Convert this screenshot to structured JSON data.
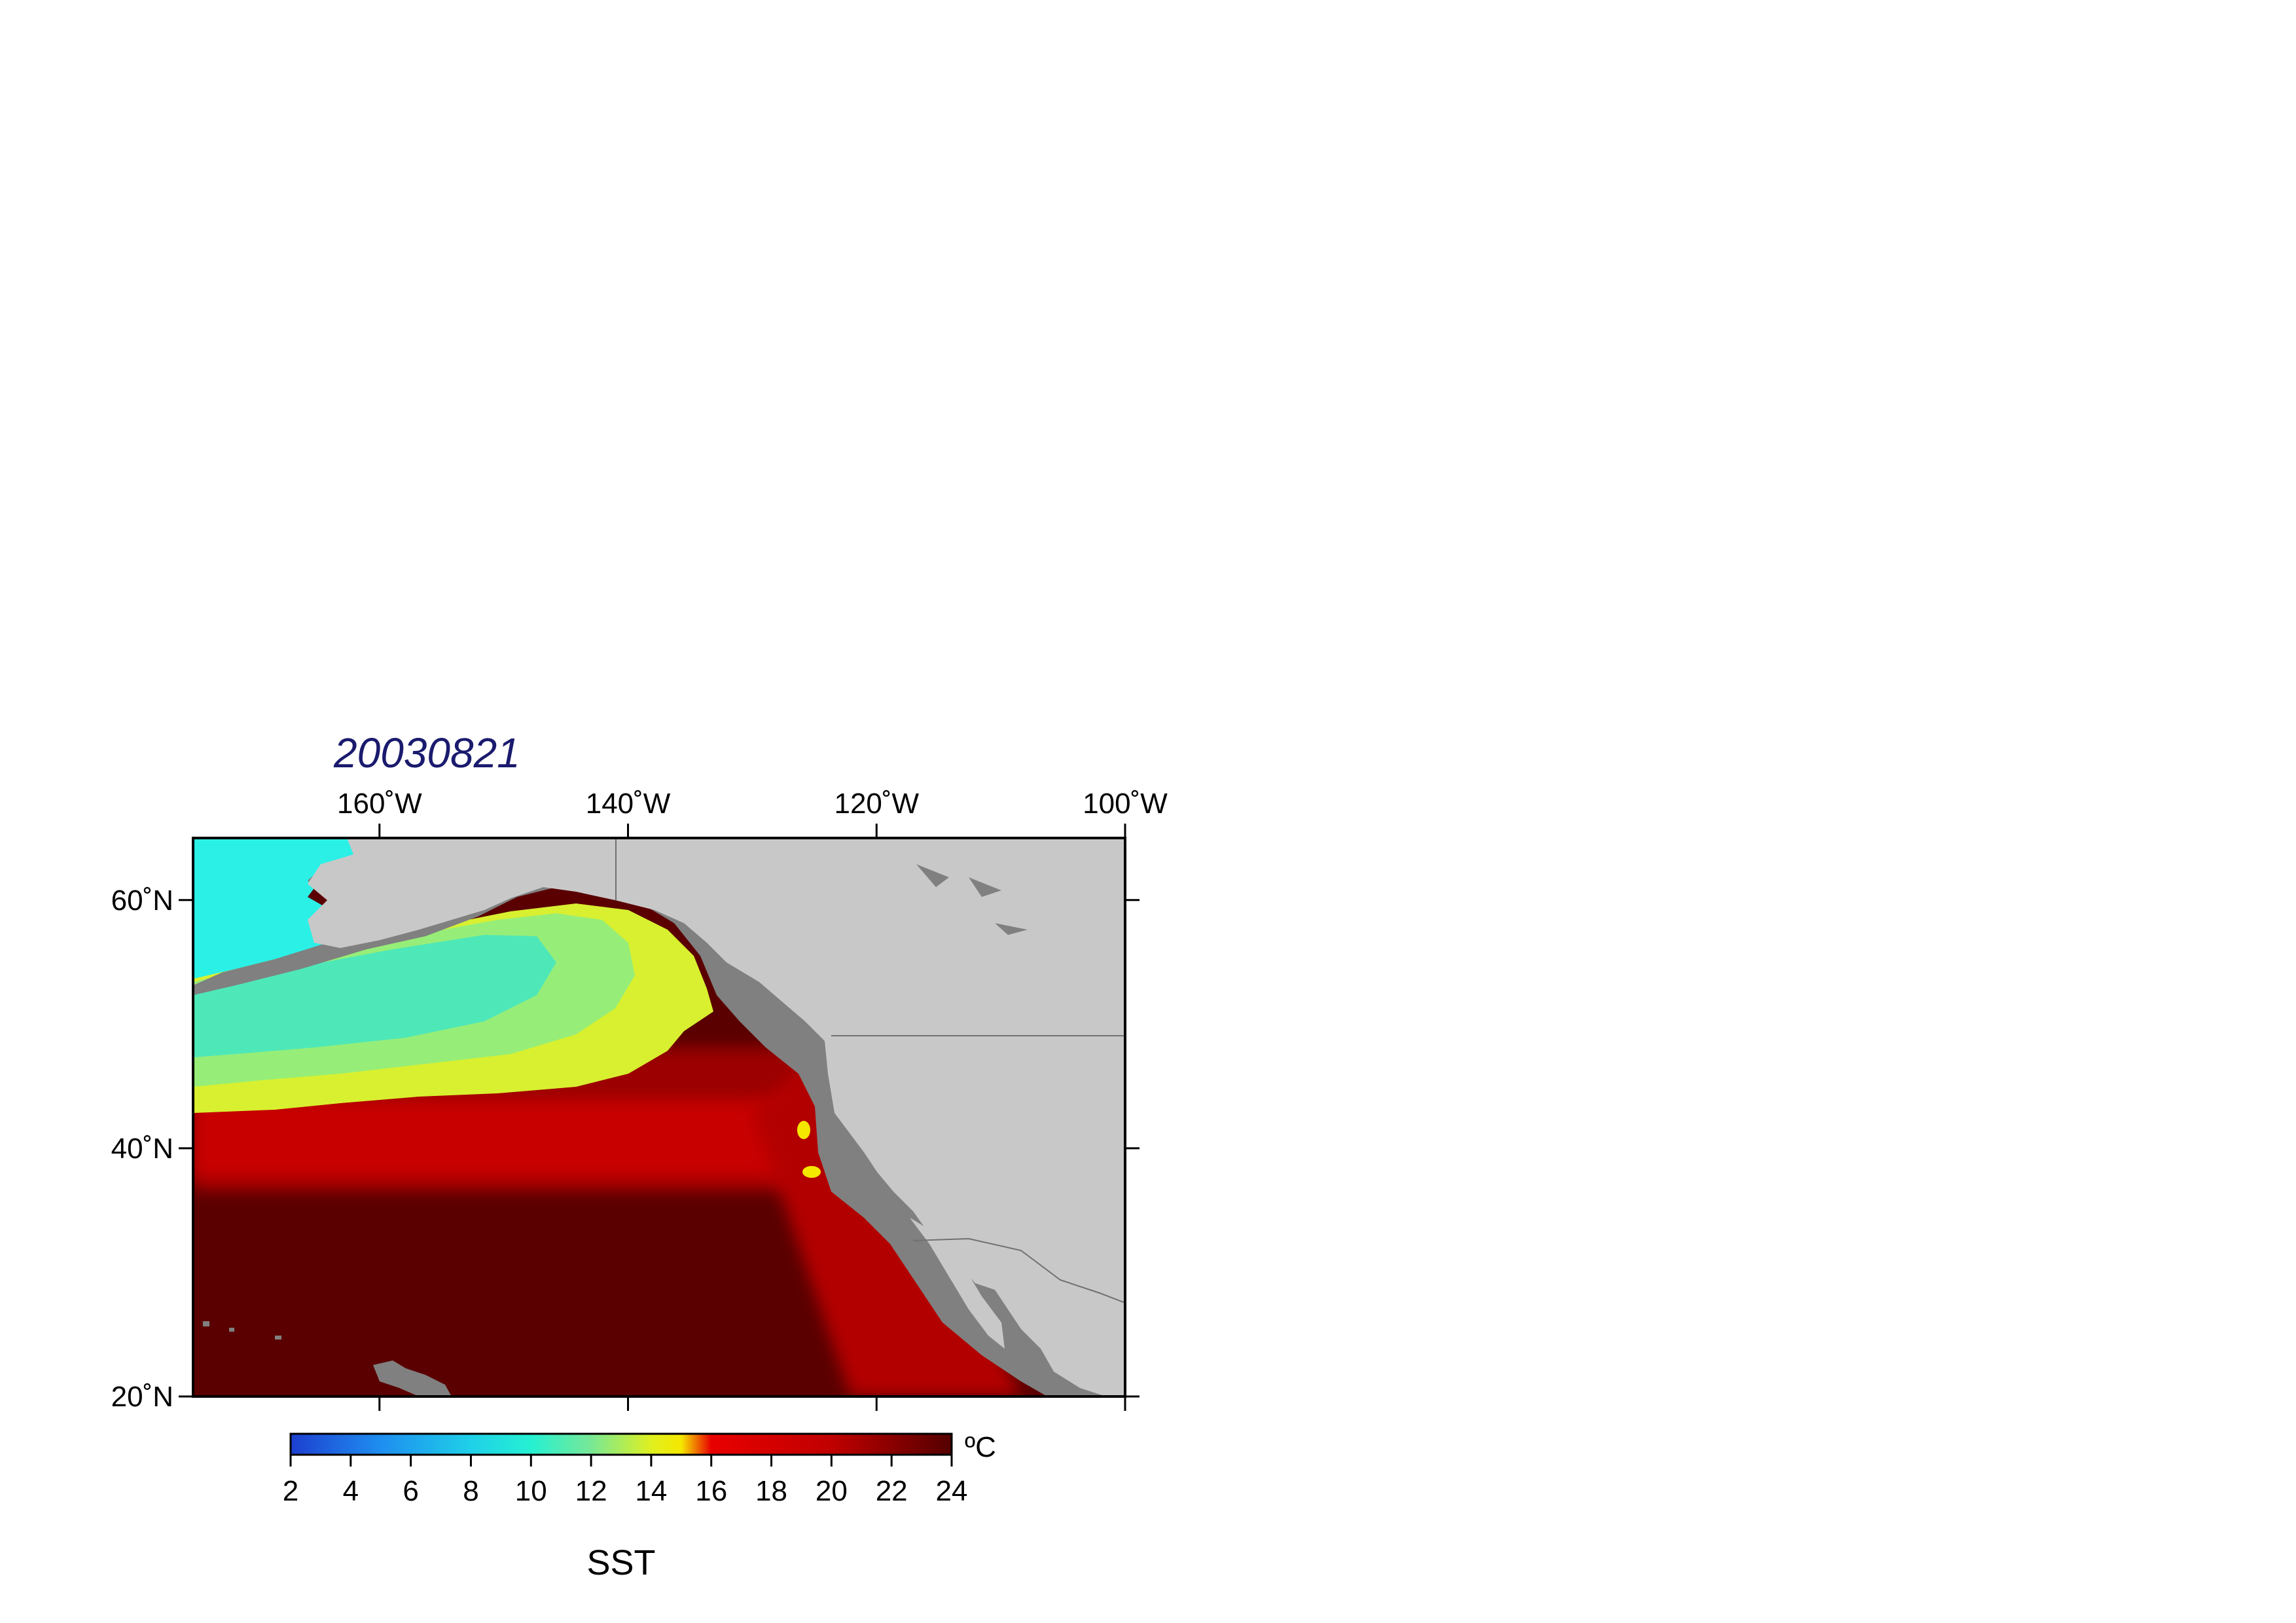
{
  "title": "20030821",
  "title_color": "#1a1a6e",
  "map": {
    "region": "Northeast Pacific and western North America",
    "projection": "equirectangular",
    "lon_range": [
      -175,
      -100
    ],
    "lat_range": [
      20,
      65
    ],
    "colors": {
      "land": "#c8c8c8",
      "shelf_mask": "#808080",
      "frame": "#000000"
    },
    "x_ticks": [
      {
        "value": -160,
        "label": "160˚W"
      },
      {
        "value": -140,
        "label": "140˚W"
      },
      {
        "value": -120,
        "label": "120˚W"
      },
      {
        "value": -100,
        "label": "100˚W"
      }
    ],
    "y_ticks": [
      {
        "value": 60,
        "label": "60˚N"
      },
      {
        "value": 40,
        "label": "40˚N"
      },
      {
        "value": 20,
        "label": "20˚N"
      }
    ]
  },
  "colorbar": {
    "min": 2,
    "max": 24,
    "unit": "ºC",
    "label": "SST",
    "ticks": [
      2,
      4,
      6,
      8,
      10,
      12,
      14,
      16,
      18,
      20,
      22,
      24
    ],
    "tick_labels": [
      "2",
      "4",
      "6",
      "8",
      "10",
      "12",
      "14",
      "16",
      "18",
      "20",
      "22",
      "24"
    ],
    "stops": [
      {
        "value": 2,
        "color": "#1d3fd0"
      },
      {
        "value": 5,
        "color": "#1e8ef0"
      },
      {
        "value": 8,
        "color": "#1fd0e8"
      },
      {
        "value": 10,
        "color": "#25f0d2"
      },
      {
        "value": 12,
        "color": "#78e896"
      },
      {
        "value": 14,
        "color": "#dff020"
      },
      {
        "value": 15,
        "color": "#f5e800"
      },
      {
        "value": 16,
        "color": "#e80000"
      },
      {
        "value": 20,
        "color": "#c00000"
      },
      {
        "value": 24,
        "color": "#540000"
      }
    ]
  }
}
